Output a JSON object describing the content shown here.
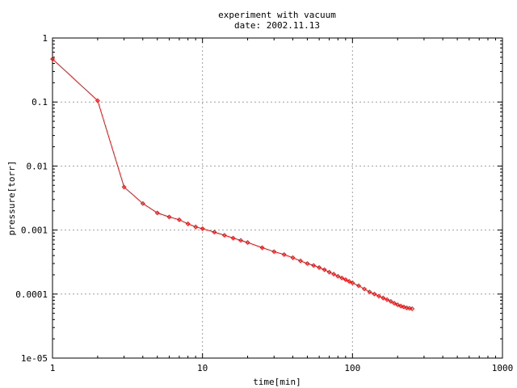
{
  "chart_data": {
    "type": "line",
    "title": "experiment with vacuum",
    "subtitle": "date: 2002.11.13",
    "xlabel": "time[min]",
    "ylabel": "pressure[torr]",
    "x_scale": "log",
    "y_scale": "log",
    "xlim": [
      1,
      1000
    ],
    "ylim": [
      1e-05,
      1
    ],
    "x_ticks": [
      1,
      10,
      100,
      1000
    ],
    "x_tick_labels": [
      "1",
      "10",
      "100",
      "1000"
    ],
    "y_ticks": [
      1,
      0.1,
      0.01,
      0.001,
      0.0001,
      1e-05
    ],
    "y_tick_labels": [
      "1",
      "0.1",
      "0.01",
      "0.001",
      "0.0001",
      "1e-05"
    ],
    "grid": true,
    "legend": "none",
    "series": [
      {
        "color": "#ff0000",
        "marker": "diamond",
        "x": [
          1,
          2,
          3,
          4,
          5,
          6,
          7,
          8,
          9,
          10,
          12,
          14,
          16,
          18,
          20,
          25,
          30,
          35,
          40,
          45,
          50,
          55,
          60,
          65,
          70,
          75,
          80,
          85,
          90,
          95,
          100,
          110,
          120,
          130,
          140,
          150,
          160,
          170,
          180,
          190,
          200,
          210,
          220,
          230,
          240,
          250
        ],
        "y": [
          0.47,
          0.105,
          0.0047,
          0.0026,
          0.00185,
          0.0016,
          0.00145,
          0.00125,
          0.00112,
          0.00105,
          0.00093,
          0.00083,
          0.00075,
          0.00069,
          0.00064,
          0.00053,
          0.00046,
          0.000415,
          0.00037,
          0.00033,
          0.0003,
          0.00028,
          0.00026,
          0.00024,
          0.00022,
          0.000205,
          0.00019,
          0.000178,
          0.000168,
          0.000158,
          0.00015,
          0.000135,
          0.00012,
          0.000108,
          0.0001,
          9.3e-05,
          8.7e-05,
          8.2e-05,
          7.7e-05,
          7.2e-05,
          6.8e-05,
          6.5e-05,
          6.3e-05,
          6.1e-05,
          6e-05,
          5.9e-05
        ]
      }
    ]
  }
}
